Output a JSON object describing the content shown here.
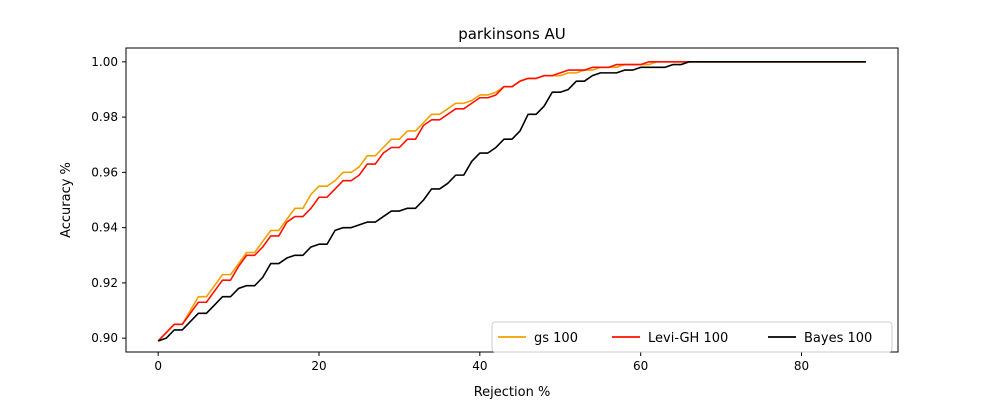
{
  "chart_data": {
    "type": "line",
    "title": "parkinsons AU",
    "xlabel": "Rejection %",
    "ylabel": "Accuracy %",
    "xlim": [
      -4,
      92
    ],
    "ylim": [
      0.895,
      1.005
    ],
    "xticks": [
      0,
      20,
      40,
      60,
      80
    ],
    "yticks": [
      0.9,
      0.92,
      0.94,
      0.96,
      0.98,
      1.0
    ],
    "ytick_labels": [
      "0.90",
      "0.92",
      "0.94",
      "0.96",
      "0.98",
      "1.00"
    ],
    "legend_position": "lower-right",
    "x": [
      0,
      1,
      2,
      3,
      4,
      5,
      6,
      7,
      8,
      9,
      10,
      11,
      12,
      13,
      14,
      15,
      16,
      17,
      18,
      19,
      20,
      21,
      22,
      23,
      24,
      25,
      26,
      27,
      28,
      29,
      30,
      31,
      32,
      33,
      34,
      35,
      36,
      37,
      38,
      39,
      40,
      41,
      42,
      43,
      44,
      45,
      46,
      47,
      48,
      49,
      50,
      51,
      52,
      53,
      54,
      55,
      56,
      57,
      58,
      59,
      60,
      61,
      62,
      63,
      64,
      65,
      66,
      67,
      68,
      70,
      72,
      74,
      76,
      78,
      80,
      82,
      84,
      86,
      88
    ],
    "series": [
      {
        "name": "gs 100",
        "color": "#f0a000",
        "values": [
          0.899,
          0.902,
          0.905,
          0.905,
          0.91,
          0.915,
          0.915,
          0.919,
          0.923,
          0.923,
          0.927,
          0.931,
          0.931,
          0.935,
          0.939,
          0.939,
          0.943,
          0.947,
          0.947,
          0.952,
          0.955,
          0.955,
          0.957,
          0.96,
          0.96,
          0.962,
          0.966,
          0.966,
          0.969,
          0.972,
          0.972,
          0.975,
          0.975,
          0.978,
          0.981,
          0.981,
          0.983,
          0.985,
          0.985,
          0.986,
          0.988,
          0.988,
          0.989,
          0.991,
          0.991,
          0.993,
          0.994,
          0.994,
          0.995,
          0.995,
          0.995,
          0.996,
          0.996,
          0.997,
          0.997,
          0.998,
          0.998,
          0.998,
          0.999,
          0.999,
          0.999,
          0.999,
          1.0,
          1.0,
          1.0,
          1.0,
          1.0,
          1.0,
          1.0,
          1.0,
          1.0,
          1.0,
          1.0,
          1.0,
          1.0,
          1.0,
          1.0,
          1.0,
          1.0
        ]
      },
      {
        "name": "Levi-GH 100",
        "color": "#ff1000",
        "values": [
          0.899,
          0.902,
          0.905,
          0.905,
          0.909,
          0.913,
          0.913,
          0.917,
          0.921,
          0.921,
          0.926,
          0.93,
          0.93,
          0.933,
          0.937,
          0.937,
          0.942,
          0.944,
          0.944,
          0.947,
          0.951,
          0.951,
          0.954,
          0.957,
          0.957,
          0.959,
          0.963,
          0.963,
          0.967,
          0.969,
          0.969,
          0.972,
          0.972,
          0.977,
          0.979,
          0.979,
          0.981,
          0.983,
          0.983,
          0.985,
          0.987,
          0.987,
          0.988,
          0.991,
          0.991,
          0.993,
          0.994,
          0.994,
          0.995,
          0.995,
          0.996,
          0.997,
          0.997,
          0.997,
          0.998,
          0.998,
          0.998,
          0.999,
          0.999,
          0.999,
          0.999,
          1.0,
          1.0,
          1.0,
          1.0,
          1.0,
          1.0,
          1.0,
          1.0,
          1.0,
          1.0,
          1.0,
          1.0,
          1.0,
          1.0,
          1.0,
          1.0,
          1.0,
          1.0
        ]
      },
      {
        "name": "Bayes 100",
        "color": "#000000",
        "values": [
          0.899,
          0.9,
          0.903,
          0.903,
          0.906,
          0.909,
          0.909,
          0.912,
          0.915,
          0.915,
          0.918,
          0.919,
          0.919,
          0.922,
          0.927,
          0.927,
          0.929,
          0.93,
          0.93,
          0.933,
          0.934,
          0.934,
          0.939,
          0.94,
          0.94,
          0.941,
          0.942,
          0.942,
          0.944,
          0.946,
          0.946,
          0.947,
          0.947,
          0.95,
          0.954,
          0.954,
          0.956,
          0.959,
          0.959,
          0.964,
          0.967,
          0.967,
          0.969,
          0.972,
          0.972,
          0.975,
          0.981,
          0.981,
          0.984,
          0.989,
          0.989,
          0.99,
          0.993,
          0.993,
          0.995,
          0.996,
          0.996,
          0.996,
          0.997,
          0.997,
          0.998,
          0.998,
          0.998,
          0.998,
          0.999,
          0.999,
          1.0,
          1.0,
          1.0,
          1.0,
          1.0,
          1.0,
          1.0,
          1.0,
          1.0,
          1.0,
          1.0,
          1.0,
          1.0
        ]
      }
    ]
  }
}
